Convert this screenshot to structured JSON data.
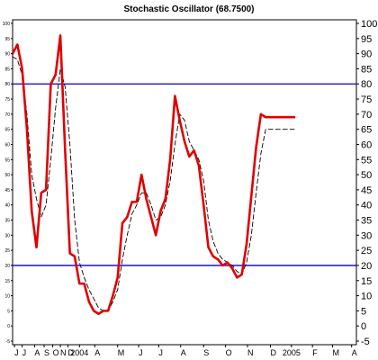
{
  "chart_data": {
    "type": "line",
    "title": "Stochastic Oscillator (68.7500)",
    "xlabel": "",
    "ylabel": "",
    "ylim": [
      -5,
      100
    ],
    "y_ticks": [
      -5,
      0,
      5,
      10,
      15,
      20,
      25,
      30,
      35,
      40,
      45,
      50,
      55,
      60,
      65,
      70,
      75,
      80,
      85,
      90,
      95,
      100
    ],
    "x_tick_labels": [
      "J",
      "J",
      "A",
      "S",
      "O",
      "N",
      "D",
      "2004",
      "A",
      "M",
      "J",
      "J",
      "A",
      "S",
      "O",
      "N",
      "D",
      "2005",
      "F",
      "M",
      "A"
    ],
    "x_tick_positions": [
      0.2,
      1.0,
      2.3,
      3.3,
      4.2,
      5.0,
      5.8,
      7.0,
      8.6,
      11.0,
      13.2,
      15.3,
      17.6,
      20.0,
      22.3,
      24.6,
      27.0,
      29.2,
      31.4,
      33.5,
      35.5
    ],
    "reference_lines": [
      {
        "value": 80,
        "color": "#0000cc"
      },
      {
        "value": 20,
        "color": "#0000cc"
      }
    ],
    "series": [
      {
        "style": "solid",
        "color": "#e00000",
        "x": [
          0,
          0.5,
          1,
          1.5,
          2,
          2.5,
          3,
          3.5,
          4,
          4.5,
          5,
          5.5,
          6,
          6.5,
          7,
          7.5,
          8,
          8.5,
          9,
          9.5,
          10,
          10.5,
          11,
          11.5,
          12,
          12.5,
          13,
          13.5,
          14,
          14.5,
          15,
          15.5,
          16,
          16.5,
          17,
          17.5,
          18,
          18.5,
          19,
          19.5,
          20,
          20.5,
          21,
          21.5,
          22,
          22.5,
          23,
          23.5,
          24,
          24.5,
          25,
          25.5,
          26,
          26.5,
          27,
          27.5,
          28,
          28.5,
          29,
          29.5
        ],
        "values": [
          90,
          93,
          85,
          65,
          38,
          26,
          44,
          45,
          80,
          83,
          96,
          58,
          24,
          23,
          14,
          14,
          8,
          5,
          4,
          5,
          5,
          10,
          16,
          34,
          36,
          41,
          41,
          50,
          42,
          36,
          30,
          38,
          42,
          55,
          76,
          68,
          61,
          56,
          58,
          53,
          40,
          26,
          23,
          22,
          20,
          21,
          19,
          16,
          17,
          27,
          43,
          59,
          70,
          69,
          69,
          69,
          69,
          69,
          69,
          69
        ]
      },
      {
        "style": "dashed",
        "color": "#000000",
        "x": [
          0,
          0.5,
          1,
          1.5,
          2,
          2.5,
          3,
          3.5,
          4,
          4.5,
          5,
          5.5,
          6,
          6.5,
          7,
          7.5,
          8,
          8.5,
          9,
          9.5,
          10,
          10.5,
          11,
          11.5,
          12,
          12.5,
          13,
          13.5,
          14,
          14.5,
          15,
          15.5,
          16,
          16.5,
          17,
          17.5,
          18,
          18.5,
          19,
          19.5,
          20,
          20.5,
          21,
          21.5,
          22,
          22.5,
          23,
          23.5,
          24,
          24.5,
          25,
          25.5,
          26,
          26.5,
          27,
          27.5,
          28,
          28.5,
          29,
          29.5
        ],
        "values": [
          89,
          88,
          83,
          70,
          50,
          42,
          36,
          40,
          55,
          72,
          85,
          79,
          60,
          35,
          21,
          16,
          12,
          9,
          6,
          5,
          5,
          8,
          12,
          22,
          30,
          37,
          40,
          44,
          44,
          40,
          35,
          36,
          40,
          48,
          60,
          70,
          68,
          61,
          58,
          55,
          48,
          35,
          28,
          24,
          22,
          21,
          20,
          18,
          17,
          21,
          30,
          44,
          57,
          65,
          65,
          65,
          65,
          65,
          65,
          65
        ]
      }
    ]
  }
}
